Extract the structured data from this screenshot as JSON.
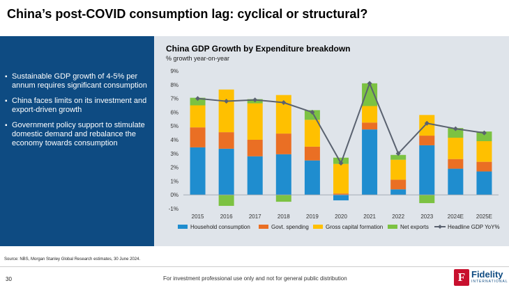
{
  "slide": {
    "title": "China’s post-COVID consumption lag: cyclical or structural?",
    "bullets": [
      "Sustainable GDP growth of 4-5% per annum requires significant consumption",
      "China faces limits on its investment and export-driven growth",
      "Government policy support to stimulate domestic demand and rebalance the economy towards consumption"
    ],
    "source": "Source: NBS, Morgan Stanley Global Research estimates, 30 June 2024.",
    "page_number": "30",
    "disclaimer": "For investment professional use only and not for general public distribution",
    "logo": {
      "name": "Fidelity",
      "sub": "INTERNATIONAL",
      "mark": "F"
    }
  },
  "colors": {
    "household": "#1f8dcf",
    "govt": "#ea6f24",
    "gcf": "#ffc000",
    "netexports": "#7cc242",
    "headline": "#5a6270",
    "left_panel": "#0e4b82",
    "chart_bg": "#dfe4ea"
  },
  "chart_data": {
    "type": "bar",
    "stacked": true,
    "title": "China GDP Growth by Expenditure breakdown",
    "subtitle": "% growth year-on-year",
    "categories": [
      "2015",
      "2016",
      "2017",
      "2018",
      "2019",
      "2020",
      "2021",
      "2022",
      "2023",
      "2024E",
      "2025E"
    ],
    "series": [
      {
        "name": "Household consumption",
        "key": "household",
        "values": [
          3.45,
          3.35,
          2.8,
          2.95,
          2.5,
          -0.4,
          4.75,
          0.4,
          3.6,
          1.9,
          1.7
        ]
      },
      {
        "name": "Govt. spending",
        "key": "govt",
        "values": [
          1.45,
          1.2,
          1.2,
          1.5,
          1.0,
          0.1,
          0.5,
          0.7,
          0.7,
          0.7,
          0.7
        ]
      },
      {
        "name": "Gross capital formation",
        "key": "gcf",
        "values": [
          1.6,
          3.1,
          2.65,
          2.8,
          1.95,
          2.15,
          1.2,
          1.45,
          1.5,
          1.55,
          1.5
        ]
      },
      {
        "name": "Net exports",
        "key": "netexports",
        "values": [
          0.55,
          -0.8,
          0.3,
          -0.5,
          0.7,
          0.45,
          1.65,
          0.35,
          -0.6,
          0.7,
          0.7
        ]
      }
    ],
    "line": {
      "name": "Headline GDP YoY%",
      "values": [
        7.0,
        6.8,
        6.9,
        6.7,
        6.0,
        2.3,
        8.1,
        3.0,
        5.2,
        4.8,
        4.5
      ]
    },
    "ylim": [
      -1,
      9
    ],
    "yticks": [
      -1,
      0,
      1,
      2,
      3,
      4,
      5,
      6,
      7,
      8,
      9
    ],
    "ytick_labels": [
      "-1%",
      "0%",
      "1%",
      "2%",
      "3%",
      "4%",
      "5%",
      "6%",
      "7%",
      "8%",
      "9%"
    ],
    "legend_position": "bottom",
    "grid": false
  }
}
